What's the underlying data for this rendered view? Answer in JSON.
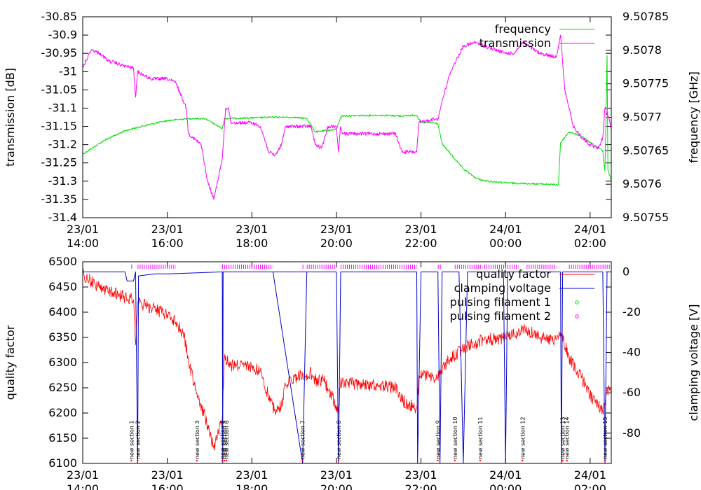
{
  "chart_data": [
    {
      "type": "line",
      "ylabel": "transmission [dB]",
      "y2label": "frequency [GHz]",
      "ylim": [
        -31.4,
        -30.85
      ],
      "y2lim": [
        9.50755,
        9.50785
      ],
      "yticks": [
        "-30.85",
        "-30.9",
        "-30.95",
        "-31",
        "-31.05",
        "-31.1",
        "-31.15",
        "-31.2",
        "-31.25",
        "-31.3",
        "-31.35",
        "-31.4"
      ],
      "yticks_values": [
        -30.85,
        -30.9,
        -30.95,
        -31,
        -31.05,
        -31.1,
        -31.15,
        -31.2,
        -31.25,
        -31.3,
        -31.35,
        -31.4
      ],
      "y2ticks": [
        "9.50785",
        "9.5078",
        "9.50775",
        "9.5077",
        "9.50765",
        "9.5076",
        "9.50755"
      ],
      "y2ticks_values": [
        9.50785,
        9.5078,
        9.50775,
        9.5077,
        9.50765,
        9.5076,
        9.50755
      ],
      "xlim_hours": [
        14,
        26.5
      ],
      "xticks": [
        {
          "date": "23/01",
          "time": "14:00",
          "h": 14
        },
        {
          "date": "23/01",
          "time": "16:00",
          "h": 16
        },
        {
          "date": "23/01",
          "time": "18:00",
          "h": 18
        },
        {
          "date": "23/01",
          "time": "20:00",
          "h": 20
        },
        {
          "date": "23/01",
          "time": "22:00",
          "h": 22
        },
        {
          "date": "24/01",
          "time": "00:00",
          "h": 24
        },
        {
          "date": "24/01",
          "time": "02:00",
          "h": 26
        }
      ],
      "legend_position": "top-right",
      "series": [
        {
          "name": "frequency",
          "axis": "y2",
          "color": "#00dd00",
          "points": [
            [
              14.0,
              9.507645
            ],
            [
              14.5,
              9.507665
            ],
            [
              15.0,
              9.50768
            ],
            [
              15.5,
              9.507688
            ],
            [
              16.0,
              9.507695
            ],
            [
              16.5,
              9.507698
            ],
            [
              16.9,
              9.507698
            ],
            [
              17.3,
              9.507683
            ],
            [
              17.35,
              9.507698
            ],
            [
              18.0,
              9.507699
            ],
            [
              18.5,
              9.5077
            ],
            [
              19.0,
              9.5077
            ],
            [
              19.3,
              9.507698
            ],
            [
              19.5,
              9.507678
            ],
            [
              20.0,
              9.507682
            ],
            [
              20.1,
              9.5077
            ],
            [
              20.15,
              9.507702
            ],
            [
              21.0,
              9.507703
            ],
            [
              21.5,
              9.507702
            ],
            [
              21.9,
              9.507703
            ],
            [
              22.0,
              9.507692
            ],
            [
              22.3,
              9.507692
            ],
            [
              22.4,
              9.50769
            ],
            [
              22.5,
              9.50766
            ],
            [
              23.0,
              9.507623
            ],
            [
              23.3,
              9.507609
            ],
            [
              23.5,
              9.507605
            ],
            [
              24.0,
              9.507602
            ],
            [
              24.5,
              9.507601
            ],
            [
              25.0,
              9.5076
            ],
            [
              25.25,
              9.507599
            ],
            [
              25.3,
              9.507662
            ],
            [
              25.5,
              9.507678
            ],
            [
              25.8,
              9.507672
            ],
            [
              26.0,
              9.507662
            ],
            [
              26.3,
              9.50765
            ],
            [
              26.35,
              9.50762
            ],
            [
              26.4,
              9.507792
            ],
            [
              26.42,
              9.507622
            ],
            [
              26.5,
              9.507605
            ]
          ]
        },
        {
          "name": "transmission",
          "axis": "y",
          "color": "#ff00ff",
          "points": [
            [
              14.0,
              -30.99
            ],
            [
              14.2,
              -30.94
            ],
            [
              14.4,
              -30.95
            ],
            [
              14.6,
              -30.97
            ],
            [
              15.0,
              -30.985
            ],
            [
              15.2,
              -30.99
            ],
            [
              15.25,
              -31.07
            ],
            [
              15.3,
              -31.0
            ],
            [
              15.6,
              -31.02
            ],
            [
              16.0,
              -31.02
            ],
            [
              16.2,
              -31.03
            ],
            [
              16.45,
              -31.1
            ],
            [
              16.5,
              -31.17
            ],
            [
              16.8,
              -31.2
            ],
            [
              16.95,
              -31.3
            ],
            [
              17.1,
              -31.35
            ],
            [
              17.3,
              -31.24
            ],
            [
              17.38,
              -31.1
            ],
            [
              17.45,
              -31.1
            ],
            [
              17.5,
              -31.14
            ],
            [
              18.0,
              -31.14
            ],
            [
              18.2,
              -31.15
            ],
            [
              18.4,
              -31.22
            ],
            [
              18.55,
              -31.23
            ],
            [
              18.7,
              -31.2
            ],
            [
              18.8,
              -31.15
            ],
            [
              19.0,
              -31.15
            ],
            [
              19.4,
              -31.15
            ],
            [
              19.5,
              -31.2
            ],
            [
              19.65,
              -31.21
            ],
            [
              19.8,
              -31.15
            ],
            [
              20.0,
              -31.15
            ],
            [
              20.05,
              -31.22
            ],
            [
              20.1,
              -31.15
            ],
            [
              20.15,
              -31.17
            ],
            [
              21.0,
              -31.17
            ],
            [
              21.4,
              -31.17
            ],
            [
              21.55,
              -31.22
            ],
            [
              21.9,
              -31.22
            ],
            [
              21.95,
              -31.14
            ],
            [
              22.3,
              -31.13
            ],
            [
              22.4,
              -31.13
            ],
            [
              22.5,
              -31.08
            ],
            [
              22.7,
              -31.0
            ],
            [
              23.0,
              -30.93
            ],
            [
              23.3,
              -30.92
            ],
            [
              23.5,
              -30.93
            ],
            [
              24.0,
              -30.95
            ],
            [
              24.2,
              -30.95
            ],
            [
              24.4,
              -30.92
            ],
            [
              24.8,
              -30.95
            ],
            [
              25.2,
              -30.96
            ],
            [
              25.3,
              -30.9
            ],
            [
              25.4,
              -31.05
            ],
            [
              25.6,
              -31.15
            ],
            [
              25.8,
              -31.18
            ],
            [
              26.0,
              -31.2
            ],
            [
              26.2,
              -31.21
            ],
            [
              26.3,
              -31.18
            ],
            [
              26.35,
              -31.1
            ],
            [
              26.45,
              -31.13
            ],
            [
              26.5,
              -31.16
            ]
          ]
        }
      ]
    },
    {
      "type": "line",
      "ylabel": "quality factor",
      "y2label": "clamping voltage [V]",
      "ylim": [
        6100,
        6500
      ],
      "y2lim": [
        -95,
        5
      ],
      "yticks": [
        "6500",
        "6450",
        "6400",
        "6350",
        "6300",
        "6250",
        "6200",
        "6150",
        "6100"
      ],
      "yticks_values": [
        6500,
        6450,
        6400,
        6350,
        6300,
        6250,
        6200,
        6150,
        6100
      ],
      "y2ticks": [
        "0",
        "-20",
        "-40",
        "-60",
        "-80"
      ],
      "y2ticks_values": [
        0,
        -20,
        -40,
        -60,
        -80
      ],
      "xlim_hours": [
        14,
        26.5
      ],
      "xticks": [
        {
          "date": "23/01",
          "time": "14:00",
          "h": 14
        },
        {
          "date": "23/01",
          "time": "16:00",
          "h": 16
        },
        {
          "date": "23/01",
          "time": "18:00",
          "h": 18
        },
        {
          "date": "23/01",
          "time": "20:00",
          "h": 20
        },
        {
          "date": "23/01",
          "time": "22:00",
          "h": 22
        },
        {
          "date": "24/01",
          "time": "00:00",
          "h": 24
        },
        {
          "date": "24/01",
          "time": "02:00",
          "h": 26
        }
      ],
      "legend_position": "top-right",
      "series": [
        {
          "name": "quality factor",
          "axis": "y",
          "color": "#ff0000",
          "points": [
            [
              14.0,
              6475
            ],
            [
              14.3,
              6455
            ],
            [
              14.7,
              6440
            ],
            [
              15.0,
              6430
            ],
            [
              15.2,
              6425
            ],
            [
              15.25,
              6335
            ],
            [
              15.3,
              6420
            ],
            [
              15.6,
              6410
            ],
            [
              16.0,
              6395
            ],
            [
              16.2,
              6380
            ],
            [
              16.4,
              6355
            ],
            [
              16.5,
              6300
            ],
            [
              16.7,
              6240
            ],
            [
              16.9,
              6190
            ],
            [
              17.1,
              6130
            ],
            [
              17.3,
              6190
            ],
            [
              17.35,
              6310
            ],
            [
              17.5,
              6295
            ],
            [
              18.0,
              6290
            ],
            [
              18.2,
              6285
            ],
            [
              18.4,
              6230
            ],
            [
              18.55,
              6205
            ],
            [
              18.7,
              6215
            ],
            [
              18.8,
              6255
            ],
            [
              19.0,
              6270
            ],
            [
              19.4,
              6280
            ],
            [
              19.5,
              6265
            ],
            [
              19.7,
              6265
            ],
            [
              20.0,
              6215
            ],
            [
              20.05,
              6205
            ],
            [
              20.1,
              6260
            ],
            [
              21.0,
              6255
            ],
            [
              21.4,
              6250
            ],
            [
              21.55,
              6225
            ],
            [
              21.9,
              6210
            ],
            [
              21.95,
              6275
            ],
            [
              22.3,
              6270
            ],
            [
              22.4,
              6270
            ],
            [
              22.6,
              6300
            ],
            [
              23.0,
              6330
            ],
            [
              23.3,
              6340
            ],
            [
              23.5,
              6345
            ],
            [
              24.0,
              6350
            ],
            [
              24.2,
              6355
            ],
            [
              24.4,
              6370
            ],
            [
              24.8,
              6350
            ],
            [
              25.2,
              6345
            ],
            [
              25.3,
              6360
            ],
            [
              25.5,
              6310
            ],
            [
              25.8,
              6270
            ],
            [
              26.0,
              6235
            ],
            [
              26.2,
              6215
            ],
            [
              26.3,
              6200
            ],
            [
              26.4,
              6250
            ],
            [
              26.5,
              6240
            ]
          ]
        },
        {
          "name": "clamping voltage",
          "axis": "y2",
          "color": "#0000cc",
          "points": [
            [
              14.0,
              0
            ],
            [
              15.0,
              0
            ],
            [
              15.05,
              -4.5
            ],
            [
              15.2,
              -4.5
            ],
            [
              15.25,
              0
            ],
            [
              15.3,
              -95
            ],
            [
              15.32,
              -2
            ],
            [
              15.7,
              -1
            ],
            [
              16.0,
              -1
            ],
            [
              17.3,
              0
            ],
            [
              17.31,
              -95
            ],
            [
              17.32,
              0
            ],
            [
              17.4,
              0
            ],
            [
              18.7,
              0
            ],
            [
              19.3,
              0
            ],
            [
              18.5,
              0
            ],
            [
              19.2,
              -95
            ],
            [
              19.3,
              0
            ],
            [
              20.0,
              0
            ],
            [
              20.05,
              -95
            ],
            [
              20.1,
              0
            ],
            [
              21.9,
              0
            ],
            [
              21.92,
              -95
            ],
            [
              22.0,
              0
            ],
            [
              22.4,
              0
            ],
            [
              22.45,
              -95
            ],
            [
              22.5,
              0
            ],
            [
              22.9,
              0
            ],
            [
              23.0,
              -95
            ],
            [
              23.1,
              0
            ],
            [
              23.95,
              0
            ],
            [
              24.0,
              -95
            ],
            [
              24.05,
              0
            ],
            [
              25.3,
              0
            ],
            [
              25.32,
              -95
            ],
            [
              25.35,
              0
            ],
            [
              26.3,
              0
            ],
            [
              26.35,
              -95
            ],
            [
              26.4,
              0
            ]
          ]
        },
        {
          "name": "pulsing filament 1",
          "axis": "y2",
          "color": "#00dd00",
          "points": []
        },
        {
          "name": "pulsing filament 2",
          "axis": "y2",
          "color": "#ff00ff",
          "segments": [
            [
              15.15,
              15.2
            ],
            [
              15.3,
              16.2
            ],
            [
              17.3,
              18.5
            ],
            [
              19.2,
              19.25
            ],
            [
              19.3,
              20.0
            ],
            [
              20.1,
              21.9
            ],
            [
              22.4,
              22.5
            ],
            [
              22.8,
              23.45
            ],
            [
              23.5,
              24.3
            ],
            [
              24.5,
              25.2
            ],
            [
              25.5,
              26.5
            ]
          ]
        }
      ],
      "annotations": [
        {
          "text": "new section 1",
          "h": 15.15
        },
        {
          "text": "new section 2",
          "h": 15.3
        },
        {
          "text": "new section 3",
          "h": 16.7
        },
        {
          "text": "new section 4",
          "h": 17.3
        },
        {
          "text": "new section 5",
          "h": 17.35
        },
        {
          "text": "new section 6",
          "h": 17.4
        },
        {
          "text": "new section 7",
          "h": 19.2
        },
        {
          "text": "new section 8",
          "h": 20.05
        },
        {
          "text": "new section 9",
          "h": 22.4
        },
        {
          "text": "new section 10",
          "h": 22.8
        },
        {
          "text": "new section 11",
          "h": 23.4
        },
        {
          "text": "new section 12",
          "h": 24.4
        },
        {
          "text": "new section 13",
          "h": 25.35
        },
        {
          "text": "new section 14",
          "h": 25.45
        },
        {
          "text": "new section 15",
          "h": 26.35
        }
      ]
    }
  ]
}
